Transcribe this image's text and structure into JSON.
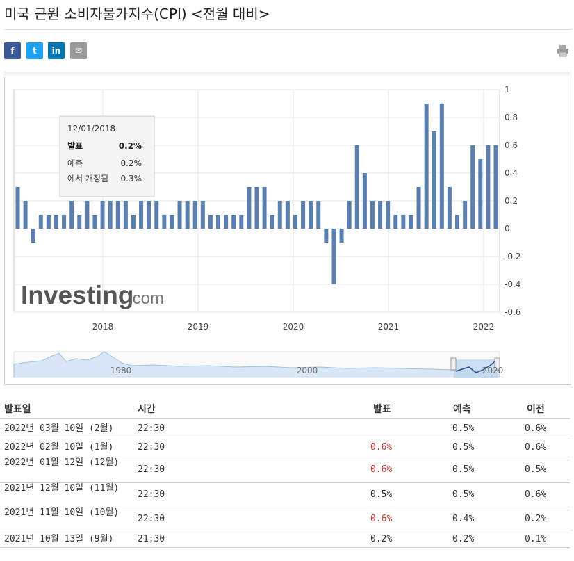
{
  "page": {
    "title": "미국 근원 소비자물가지수(CPI) <전월 대비>"
  },
  "share": {
    "facebook": "f",
    "twitter": "t",
    "linkedin": "in",
    "email": "✉"
  },
  "tooltip": {
    "date": "12/01/2018",
    "actual_label": "발표",
    "actual_value": "0.2%",
    "forecast_label": "예측",
    "forecast_value": "0.2%",
    "revised_label": "에서 개정됨",
    "revised_value": "0.3%"
  },
  "watermark": {
    "brand": "Investing",
    "suffix": ".com"
  },
  "navigator": {
    "labels": [
      "1980",
      "2000",
      "2020"
    ]
  },
  "chart_data": {
    "type": "bar",
    "color": "#5b7fae",
    "x_tick_labels": [
      "2018",
      "2019",
      "2020",
      "2021",
      "2022"
    ],
    "y_ticks": [
      "1",
      "0.8",
      "0.6",
      "0.4",
      "0.2",
      "0",
      "-0.2",
      "-0.4",
      "-0.6"
    ],
    "ylim": [
      -0.6,
      1.0
    ],
    "grid": true,
    "series": [
      {
        "values": [
          0.3,
          0.2,
          -0.1,
          0.1,
          0.1,
          0.1,
          0.1,
          0.2,
          0.1,
          0.2,
          0.1,
          0.2,
          0.2,
          0.2,
          0.2,
          0.1,
          0.2,
          0.2,
          0.2,
          0.1,
          0.1,
          0.2,
          0.2,
          0.2,
          0.2,
          0.1,
          0.1,
          0.1,
          0.1,
          0.1,
          0.3,
          0.3,
          0.3,
          0.1,
          0.2,
          0.2,
          0.1,
          0.2,
          0.2,
          0.2,
          -0.1,
          -0.4,
          -0.1,
          0.2,
          0.6,
          0.4,
          0.2,
          0.2,
          0.2,
          0.1,
          0.1,
          0.1,
          0.3,
          0.9,
          0.7,
          0.9,
          0.3,
          0.1,
          0.2,
          0.6,
          0.5,
          0.6,
          0.6
        ]
      }
    ]
  },
  "table": {
    "headers": {
      "date": "발표일",
      "time": "시간",
      "actual": "발표",
      "forecast": "예측",
      "previous": "이전"
    },
    "rows": [
      {
        "date": "2022년 03월 10일 (2월)",
        "time": "22:30",
        "actual": "",
        "forecast": "0.5%",
        "previous": "0.6%",
        "actual_red": false
      },
      {
        "date": "2022년 02월 10일 (1월)",
        "time": "22:30",
        "actual": "0.6%",
        "forecast": "0.5%",
        "previous": "0.6%",
        "actual_red": true
      },
      {
        "date": "2022년 01월 12일 (12월)",
        "time": "22:30",
        "actual": "0.6%",
        "forecast": "0.5%",
        "previous": "0.5%",
        "actual_red": true
      },
      {
        "date": "2021년 12월 10일 (11월)",
        "time": "22:30",
        "actual": "0.5%",
        "forecast": "0.5%",
        "previous": "0.6%",
        "actual_red": false
      },
      {
        "date": "2021년 11월 10일 (10월)",
        "time": "22:30",
        "actual": "0.6%",
        "forecast": "0.4%",
        "previous": "0.2%",
        "actual_red": true
      },
      {
        "date": "2021년 10월 13일 (9월)",
        "time": "21:30",
        "actual": "0.2%",
        "forecast": "0.2%",
        "previous": "0.1%",
        "actual_red": false
      }
    ]
  }
}
